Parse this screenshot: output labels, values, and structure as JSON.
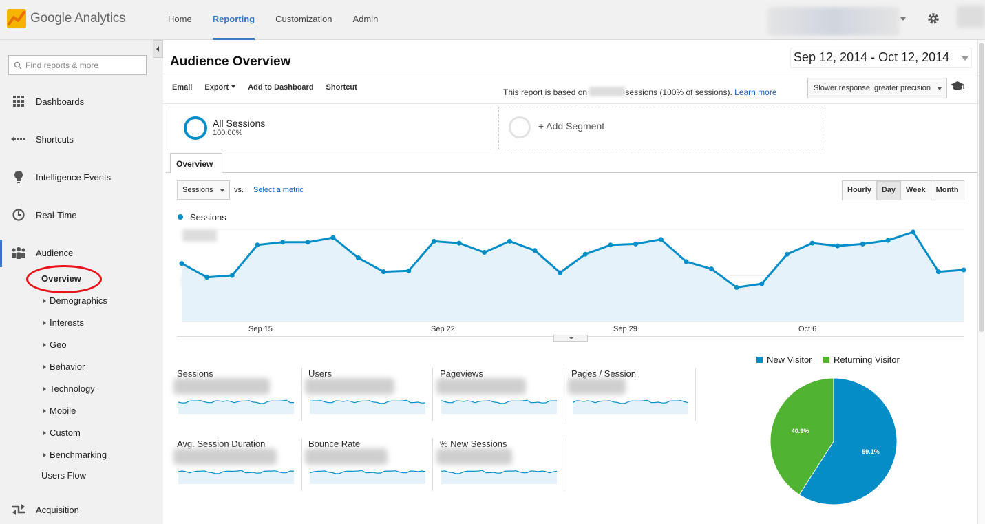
{
  "app": {
    "logo_google": "Google",
    "logo_product": "Analytics"
  },
  "topnav": {
    "items": [
      "Home",
      "Reporting",
      "Customization",
      "Admin"
    ],
    "active": "Reporting"
  },
  "sidebar": {
    "search_placeholder": "Find reports & more",
    "items": [
      {
        "label": "Dashboards",
        "icon": "grid-icon"
      },
      {
        "label": "Shortcuts",
        "icon": "shortcut-arrow-icon"
      },
      {
        "label": "Intelligence Events",
        "icon": "lightbulb-icon"
      },
      {
        "label": "Real-Time",
        "icon": "clock-icon"
      },
      {
        "label": "Audience",
        "icon": "people-icon"
      },
      {
        "label": "Acquisition",
        "icon": "acquisition-arrows-icon"
      }
    ],
    "audience_sub": [
      "Overview",
      "Demographics",
      "Interests",
      "Geo",
      "Behavior",
      "Technology",
      "Mobile",
      "Custom",
      "Benchmarking"
    ],
    "users_flow": "Users Flow"
  },
  "page": {
    "title": "Audience Overview",
    "date_range": "Sep 12, 2014 - Oct 12, 2014"
  },
  "toolbar": {
    "email": "Email",
    "export": "Export",
    "add_dashboard": "Add to Dashboard",
    "shortcut": "Shortcut",
    "note_prefix": "This report is based on",
    "note_suffix": "sessions (100% of sessions).",
    "learn_more": "Learn more",
    "precision": "Slower response, greater precision"
  },
  "segments": {
    "all_sessions": "All Sessions",
    "all_pct": "100.00%",
    "add_segment": "+ Add Segment"
  },
  "tabs": {
    "overview": "Overview"
  },
  "chart_controls": {
    "metric": "Sessions",
    "vs": "vs.",
    "select_metric": "Select a metric",
    "granularity": [
      "Hourly",
      "Day",
      "Week",
      "Month"
    ],
    "active_granularity": "Day"
  },
  "chart_data": {
    "type": "area",
    "series": [
      {
        "name": "Sessions",
        "values": [
          0.37,
          0.52,
          0.5,
          0.17,
          0.14,
          0.14,
          0.09,
          0.31,
          0.46,
          0.45,
          0.13,
          0.15,
          0.25,
          0.13,
          0.23,
          0.47,
          0.27,
          0.17,
          0.16,
          0.11,
          0.35,
          0.43,
          0.63,
          0.59,
          0.27,
          0.15,
          0.18,
          0.16,
          0.12,
          0.03,
          0.46,
          0.44
        ]
      }
    ],
    "x_ticks": [
      "Sep 15",
      "Sep 22",
      "Sep 29",
      "Oct 6"
    ],
    "color": "#058dc7"
  },
  "metrics": [
    {
      "name": "Sessions"
    },
    {
      "name": "Users"
    },
    {
      "name": "Pageviews"
    },
    {
      "name": "Pages / Session"
    },
    {
      "name": "Avg. Session Duration"
    },
    {
      "name": "Bounce Rate"
    },
    {
      "name": "% New Sessions"
    }
  ],
  "pie": {
    "new_label": "New Visitor",
    "returning_label": "Returning Visitor",
    "new_pct": "59.1%",
    "returning_pct": "40.9%",
    "new_value": 59.1,
    "returning_value": 40.9,
    "new_color": "#058dc7",
    "returning_color": "#50b432"
  }
}
